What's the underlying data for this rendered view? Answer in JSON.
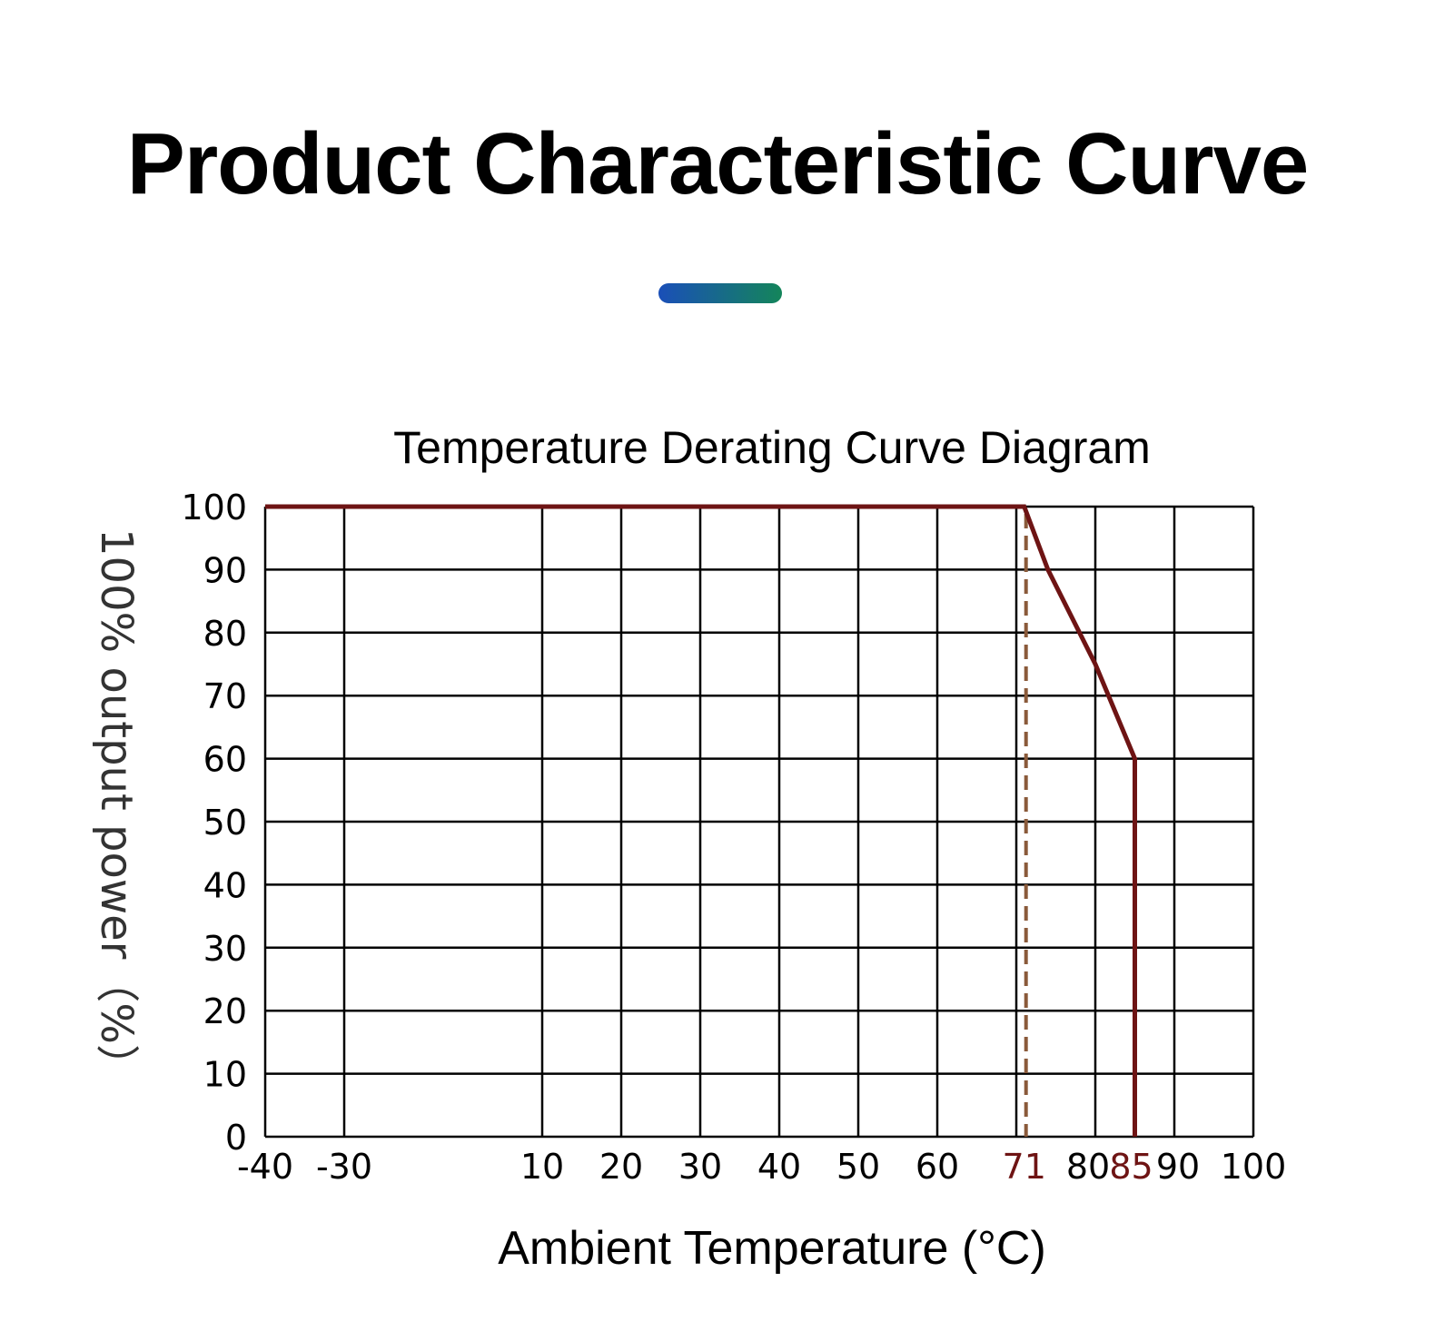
{
  "header": {
    "title": "Product Characteristic Curve"
  },
  "colors": {
    "accent_start": "#1a4fb8",
    "accent_end": "#14855a",
    "curve": "#6e1414",
    "marker_dashed": "#8a5a3a",
    "highlight_tick": "#6e1414",
    "grid": "#000000"
  },
  "chart_data": {
    "type": "line",
    "title": "Temperature Derating Curve Diagram",
    "xlabel": "Ambient Temperature (°C)",
    "ylabel": "100% output power（%）",
    "xlim": [
      -40,
      100
    ],
    "ylim": [
      0,
      100
    ],
    "grid": true,
    "x_ticks": [
      -40,
      -30,
      10,
      20,
      30,
      40,
      50,
      60,
      71,
      80,
      85,
      90,
      100
    ],
    "highlight_x_ticks": [
      71,
      85
    ],
    "y_ticks": [
      0,
      10,
      20,
      30,
      40,
      50,
      60,
      70,
      80,
      90,
      100
    ],
    "series": [
      {
        "x": [
          -40,
          71,
          74,
          80,
          85,
          85
        ],
        "y": [
          100,
          100,
          90,
          75,
          60,
          0
        ]
      }
    ],
    "reference_lines": [
      {
        "x": 71,
        "style": "dashed"
      }
    ]
  }
}
